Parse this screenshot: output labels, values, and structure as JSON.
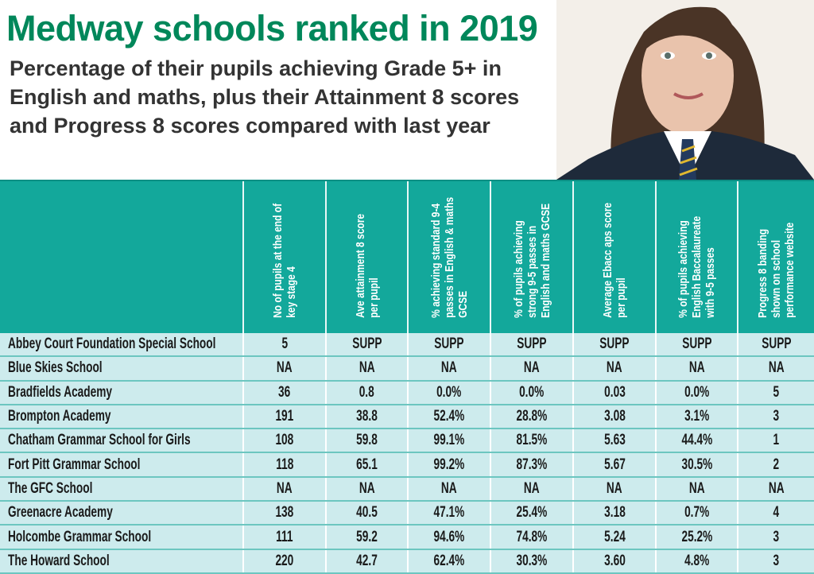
{
  "title": "Medway schools ranked in 2019",
  "subtitle": "Percentage of their pupils achieving Grade 5+ in English and maths, plus their Attainment 8 scores and Progress 8 scores compared with last year",
  "colors": {
    "title": "#00875a",
    "header": "#13a89b",
    "row": "#cdebed"
  },
  "columns": [
    "",
    "No of pupils at the end of key stage 4",
    "Ave attainment 8 score per pupil",
    "% achieving standard 9-4 passes in English & maths GCSE",
    "% of pupils achieving strong 9-5 passes in English and maths GCSE",
    "Average Ebacc aps score per pupil",
    "% of pupils achieving English Baccalaureate with 9-5 passes",
    "Progress 8 banding shown on school performance website"
  ],
  "rows": [
    [
      "Abbey Court Foundation Special School",
      "5",
      "SUPP",
      "SUPP",
      "SUPP",
      "SUPP",
      "SUPP",
      "SUPP"
    ],
    [
      "Blue Skies School",
      "NA",
      "NA",
      "NA",
      "NA",
      "NA",
      "NA",
      "NA"
    ],
    [
      "Bradfields Academy",
      "36",
      "0.8",
      "0.0%",
      "0.0%",
      "0.03",
      "0.0%",
      "5"
    ],
    [
      "Brompton Academy",
      "191",
      "38.8",
      "52.4%",
      "28.8%",
      "3.08",
      "3.1%",
      "3"
    ],
    [
      "Chatham Grammar School for Girls",
      "108",
      "59.8",
      "99.1%",
      "81.5%",
      "5.63",
      "44.4%",
      "1"
    ],
    [
      "Fort Pitt Grammar School",
      "118",
      "65.1",
      "99.2%",
      "87.3%",
      "5.67",
      "30.5%",
      "2"
    ],
    [
      "The GFC School",
      "NA",
      "NA",
      "NA",
      "NA",
      "NA",
      "NA",
      "NA"
    ],
    [
      "Greenacre Academy",
      "138",
      "40.5",
      "47.1%",
      "25.4%",
      "3.18",
      "0.7%",
      "4"
    ],
    [
      "Holcombe Grammar School",
      "111",
      "59.2",
      "94.6%",
      "74.8%",
      "5.24",
      "25.2%",
      "3"
    ],
    [
      "The Howard School",
      "220",
      "42.7",
      "62.4%",
      "30.3%",
      "3.60",
      "4.8%",
      "3"
    ]
  ]
}
